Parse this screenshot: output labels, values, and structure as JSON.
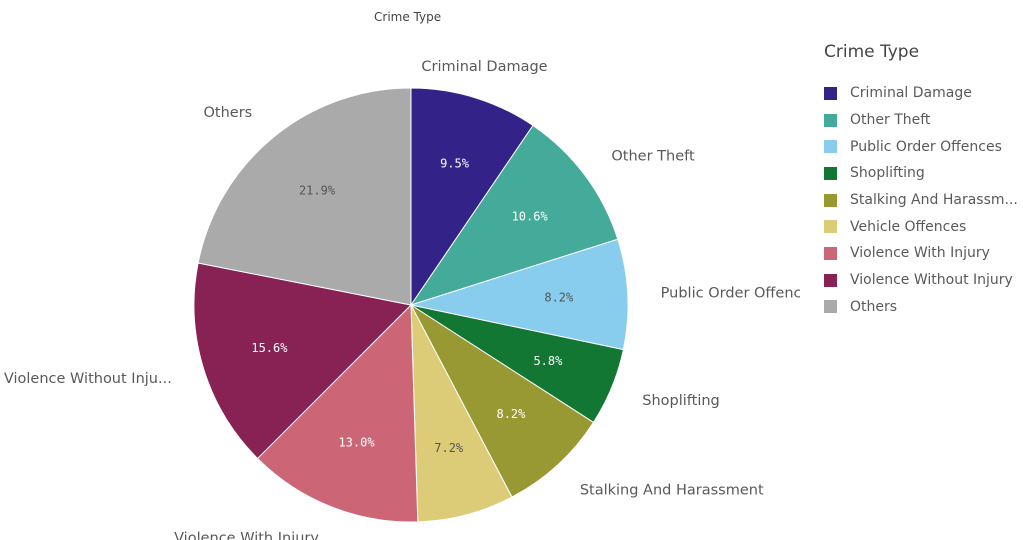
{
  "chart_data": {
    "type": "pie",
    "title": "Crime Type",
    "legend_title": "Crime Type",
    "legend_position": "right",
    "slices": [
      {
        "name": "Criminal Damage",
        "value": 9.5,
        "pct_label": "9.5%",
        "outer_label": "Criminal Damage",
        "color": "#332288",
        "pct_color": "#ffffff"
      },
      {
        "name": "Other Theft",
        "value": 10.6,
        "pct_label": "10.6%",
        "outer_label": "Other Theft",
        "color": "#44aa99",
        "pct_color": "#ffffff"
      },
      {
        "name": "Public Order Offences",
        "value": 8.2,
        "pct_label": "8.2%",
        "outer_label": "Public Order Offenc...",
        "color": "#88ccee",
        "pct_color": "#555555"
      },
      {
        "name": "Shoplifting",
        "value": 5.8,
        "pct_label": "5.8%",
        "outer_label": "Shoplifting",
        "color": "#117733",
        "pct_color": "#ffffff"
      },
      {
        "name": "Stalking And Harassment",
        "value": 8.2,
        "pct_label": "8.2%",
        "outer_label": "Stalking And Harassment",
        "color": "#999933",
        "pct_color": "#ffffff"
      },
      {
        "name": "Vehicle Offences",
        "value": 7.2,
        "pct_label": "7.2%",
        "outer_label": "Vehicle Offences",
        "color": "#ddcc77",
        "pct_color": "#555555"
      },
      {
        "name": "Violence With Injury",
        "value": 13.0,
        "pct_label": "13.0%",
        "outer_label": "Violence With Injury",
        "color": "#cc6677",
        "pct_color": "#ffffff"
      },
      {
        "name": "Violence Without Injury",
        "value": 15.6,
        "pct_label": "15.6%",
        "outer_label": "Violence Without Inju...",
        "color": "#882255",
        "pct_color": "#ffffff"
      },
      {
        "name": "Others",
        "value": 21.9,
        "pct_label": "21.9%",
        "outer_label": "Others",
        "color": "#aaaaaa",
        "pct_color": "#555555"
      }
    ],
    "legend_items": [
      {
        "label": "Criminal Damage",
        "color": "#332288"
      },
      {
        "label": "Other Theft",
        "color": "#44aa99"
      },
      {
        "label": "Public Order Offences",
        "color": "#88ccee"
      },
      {
        "label": "Shoplifting",
        "color": "#117733"
      },
      {
        "label": "Stalking And Harassm...",
        "color": "#999933"
      },
      {
        "label": "Vehicle Offences",
        "color": "#ddcc77"
      },
      {
        "label": "Violence With Injury",
        "color": "#cc6677"
      },
      {
        "label": "Violence Without Injury",
        "color": "#882255"
      },
      {
        "label": "Others",
        "color": "#aaaaaa"
      }
    ]
  }
}
